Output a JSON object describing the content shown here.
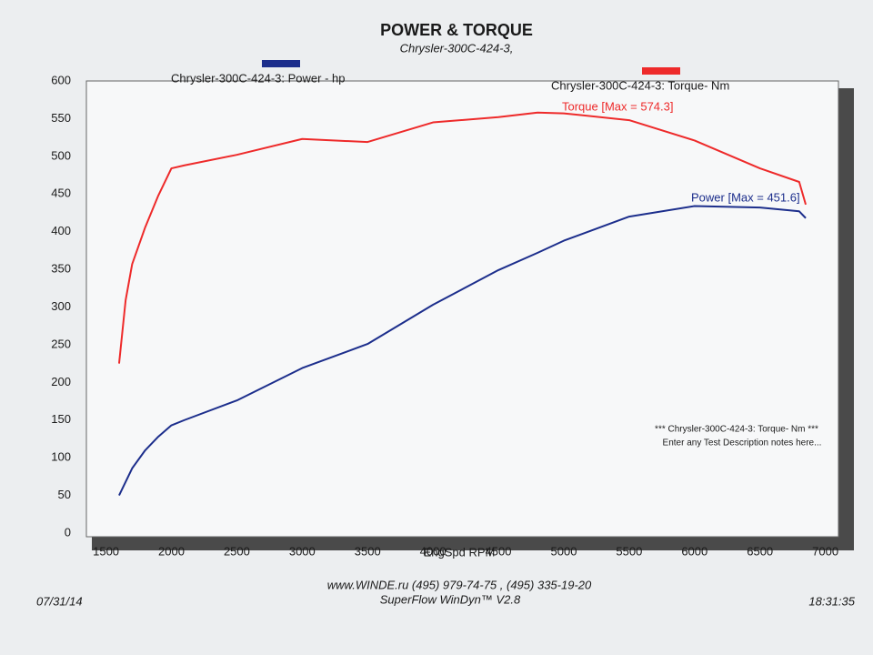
{
  "chart_data": {
    "type": "line",
    "title": "POWER & TORQUE",
    "subtitle": "Chrysler-300C-424-3,",
    "x_label": "EngSpd  RPM",
    "x": [
      1600,
      1650,
      1700,
      1800,
      1900,
      2000,
      2100,
      2500,
      3000,
      3500,
      4000,
      4500,
      4800,
      5000,
      5500,
      6000,
      6500,
      6800,
      6850
    ],
    "series": [
      {
        "name": "Chrysler-300C-424-3: Power -  hp",
        "color": "#1c2e8c",
        "values": [
          50,
          68,
          86,
          110,
          128,
          143,
          150,
          176,
          219,
          251,
          303,
          349,
          372,
          388,
          420,
          434,
          432,
          427,
          418
        ]
      },
      {
        "name": "Chrysler-300C-424-3: Torque-  Nm",
        "color": "#ee2a2a",
        "values": [
          225,
          309,
          357,
          406,
          448,
          484,
          488,
          502,
          523,
          519,
          545,
          552,
          558,
          557,
          548,
          521,
          484,
          466,
          436
        ]
      }
    ],
    "annotations": [
      "Torque [Max = 574.3]",
      "Power  [Max = 451.6]",
      "*** Chrysler-300C-424-3: Torque-  Nm  ***",
      "Enter any Test Description notes here..."
    ],
    "footer": {
      "website": "www.WINDE.ru  (495) 979-74-75 , (495) 335-19-20",
      "software": "SuperFlow WinDyn™ V2.8",
      "date": "07/31/14",
      "time": "18:31:35"
    },
    "xlim": [
      1350,
      7100
    ],
    "xticks": [
      1500,
      2000,
      2500,
      3000,
      3500,
      4000,
      4500,
      5000,
      5500,
      6000,
      6500,
      7000
    ],
    "ylim": [
      0,
      600
    ],
    "yticks": [
      0,
      50,
      100,
      150,
      200,
      250,
      300,
      350,
      400,
      450,
      500,
      550,
      600
    ],
    "grid": false
  }
}
